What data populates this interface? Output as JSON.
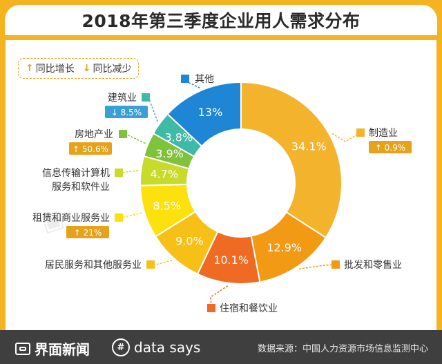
{
  "header": {
    "title": "2018年第三季度企业用人需求分布"
  },
  "legend": {
    "up_icon": "↑",
    "up_label": "同比增长",
    "down_icon": "↓",
    "down_label": "同比减少"
  },
  "colors": {
    "accent": "#f4b321",
    "label_text": "#333333",
    "change_up": "#e6a21b",
    "change_down": "#3a9fd6"
  },
  "chart_data": {
    "type": "pie",
    "title": "2018年第三季度企业用人需求分布",
    "slices": [
      {
        "name": "制造业",
        "value": 34.1,
        "value_label": "34.1%",
        "color": "#f4b32c",
        "change": "0.9%",
        "direction": "up"
      },
      {
        "name": "批发和零售业",
        "value": 12.9,
        "value_label": "12.9%",
        "color": "#f39a15",
        "change": "",
        "direction": ""
      },
      {
        "name": "住宿和餐饮业",
        "value": 10.1,
        "value_label": "10.1%",
        "color": "#ef6a22",
        "change": "",
        "direction": ""
      },
      {
        "name": "居民服务和其他服务业",
        "value": 9.0,
        "value_label": "9.0%",
        "color": "#f7c017",
        "change": "",
        "direction": ""
      },
      {
        "name": "租赁和商业服务业",
        "value": 8.5,
        "value_label": "8.5%",
        "color": "#fde10c",
        "change": "21%",
        "direction": "up"
      },
      {
        "name": "信息传输计算机服务和软件业",
        "value": 4.7,
        "value_label": "4.7%",
        "color": "#c8da2a",
        "change": "",
        "direction": ""
      },
      {
        "name": "房地产业",
        "value": 3.9,
        "value_label": "3.9%",
        "color": "#7fc23b",
        "change": "50.6%",
        "direction": "up"
      },
      {
        "name": "建筑业",
        "value": 3.8,
        "value_label": "3.8%",
        "color": "#3fbaa6",
        "change": "8.5%",
        "direction": "down"
      },
      {
        "name": "其他",
        "value": 13.0,
        "value_label": "13%",
        "color": "#1f86d6",
        "change": "",
        "direction": ""
      }
    ]
  },
  "footer": {
    "brand1": "界面新闻",
    "brand2": "data says",
    "source": "数据来源：中国人力资源市场信息监测中心"
  }
}
